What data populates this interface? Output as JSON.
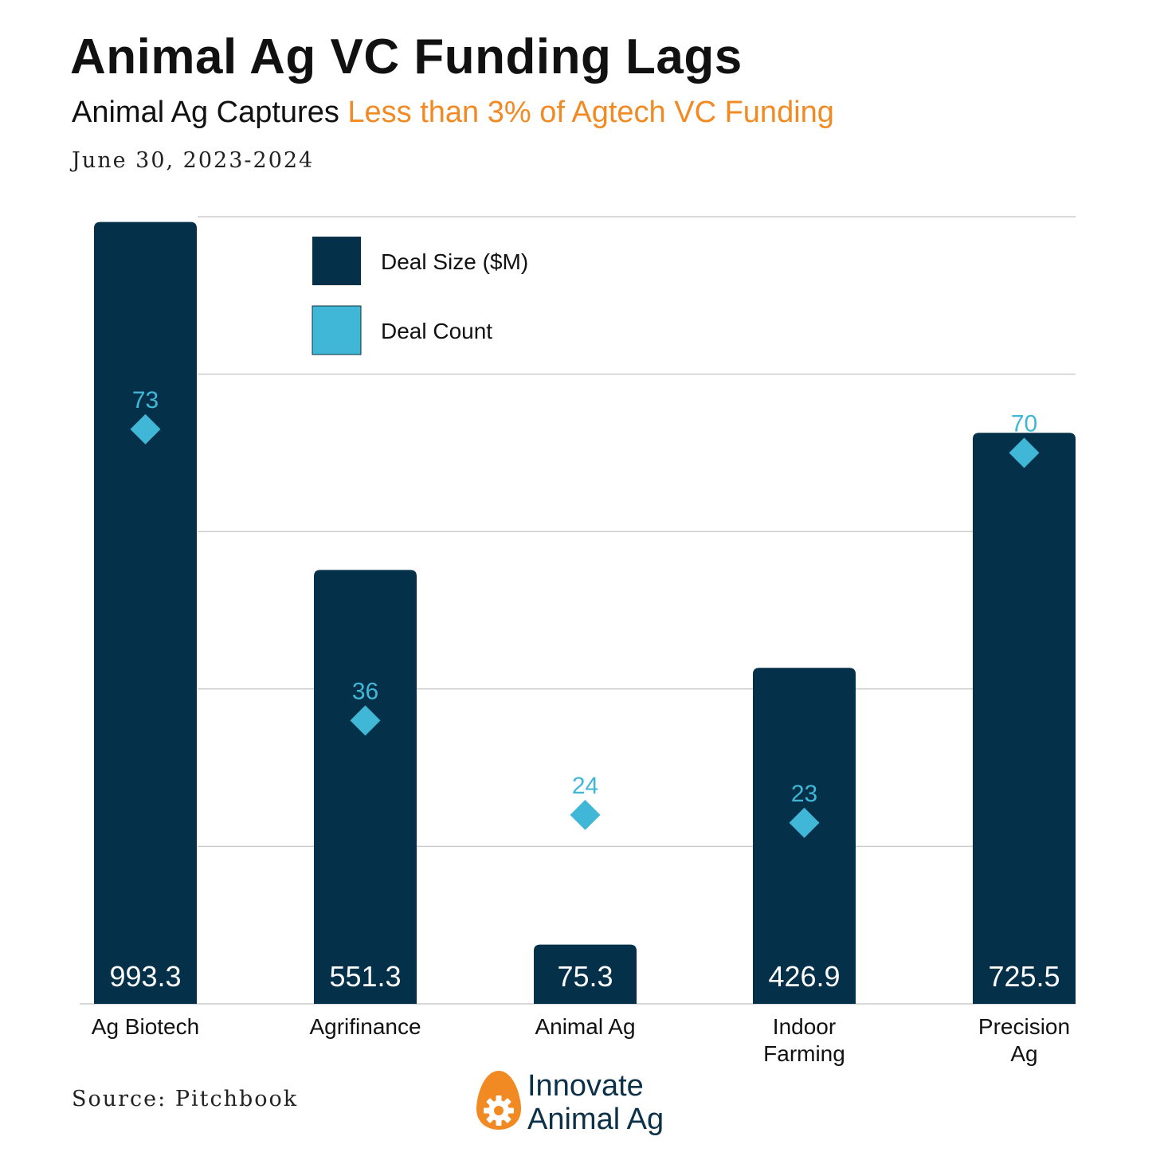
{
  "header": {
    "title": "Animal Ag VC Funding Lags",
    "subtitle_lead": "Animal Ag Captures ",
    "subtitle_highlight": "Less than 3% of Agtech VC Funding",
    "date": "June 30, 2023-2024"
  },
  "footer": {
    "source": "Source: Pitchbook",
    "logo_line1": "Innovate",
    "logo_line2": "Animal Ag"
  },
  "colors": {
    "bar": "#043049",
    "marker": "#40b7d6",
    "highlight": "#f28a24",
    "grid": "#cccccc"
  },
  "chart_data": {
    "type": "bar",
    "categories": [
      "Ag Biotech",
      "Agrifinance",
      "Animal Ag",
      "Indoor Farming",
      "Precision Ag"
    ],
    "series": [
      {
        "name": "Deal Size ($M)",
        "type": "bar",
        "values": [
          993.3,
          551.3,
          75.3,
          426.9,
          725.5
        ]
      },
      {
        "name": "Deal Count",
        "type": "marker",
        "values": [
          73,
          36,
          24,
          23,
          70
        ]
      }
    ],
    "grid": true,
    "legend_position": "top-center",
    "ylim": [
      0,
      1000
    ]
  }
}
